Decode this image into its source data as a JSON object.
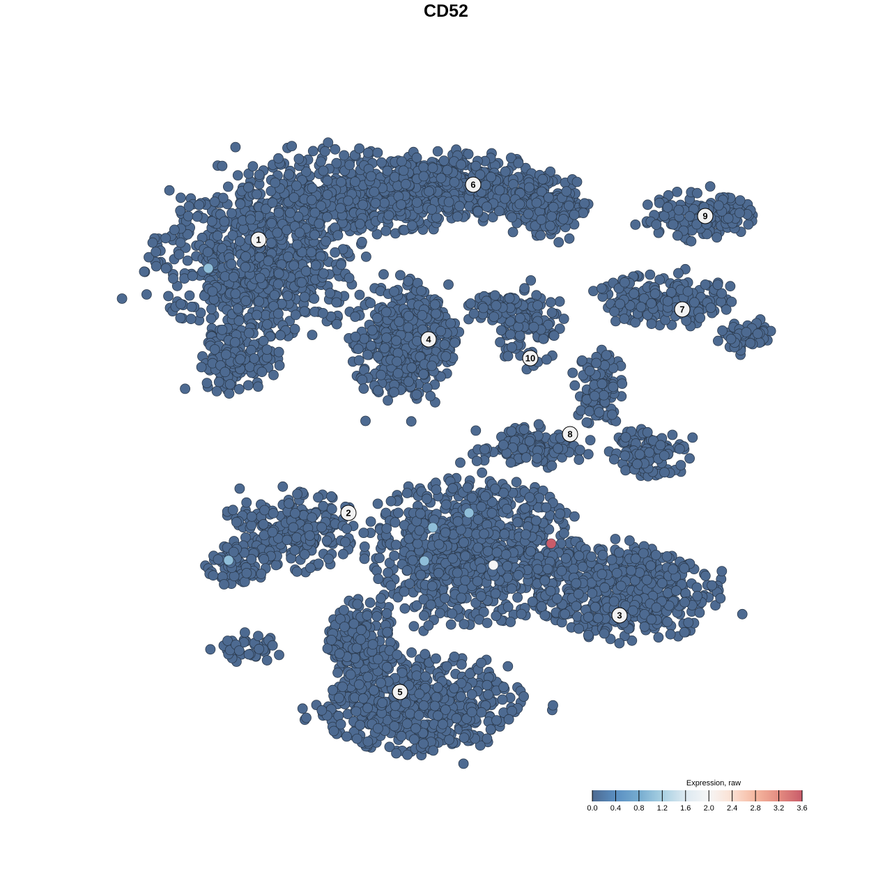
{
  "chart_data": {
    "type": "scatter",
    "title": "CD52",
    "xlabel": "",
    "ylabel": "",
    "axes_visible": false,
    "grid": false,
    "background_expression": 0.0,
    "clusters": [
      {
        "label": "1",
        "center": [
          -26.9,
          29.6
        ]
      },
      {
        "label": "2",
        "center": [
          -14.0,
          -9.6
        ]
      },
      {
        "label": "3",
        "center": [
          24.9,
          -24.3
        ]
      },
      {
        "label": "4",
        "center": [
          -2.5,
          15.3
        ]
      },
      {
        "label": "5",
        "center": [
          -6.6,
          -35.3
        ]
      },
      {
        "label": "6",
        "center": [
          3.9,
          37.5
        ]
      },
      {
        "label": "7",
        "center": [
          33.9,
          19.6
        ]
      },
      {
        "label": "8",
        "center": [
          17.8,
          1.7
        ]
      },
      {
        "label": "9",
        "center": [
          37.2,
          33.0
        ]
      },
      {
        "label": "10",
        "center": [
          12.1,
          12.6
        ]
      }
    ],
    "highlighted_cells": [
      {
        "x": -34.1,
        "y": 25.5,
        "expression": 1.0
      },
      {
        "x": -31.2,
        "y": -16.4,
        "expression": 1.0
      },
      {
        "x": -1.9,
        "y": -11.7,
        "expression": 1.0
      },
      {
        "x": 3.3,
        "y": -9.6,
        "expression": 1.0
      },
      {
        "x": -3.1,
        "y": -16.5,
        "expression": 1.0
      },
      {
        "x": 6.8,
        "y": -17.1,
        "expression": 2.0
      },
      {
        "x": 15.1,
        "y": -14.0,
        "expression": 3.6
      }
    ],
    "legend": {
      "title": "Expression, raw",
      "placement": "bottom-right",
      "ticks": [
        "0.0",
        "0.4",
        "0.8",
        "1.2",
        "1.6",
        "2.0",
        "2.4",
        "2.8",
        "3.2",
        "3.6"
      ],
      "range": [
        0,
        3.6
      ],
      "colors": [
        "#4d6a91",
        "#5a8fc2",
        "#76acd0",
        "#a8d0e2",
        "#dde9f1",
        "#f6f6f6",
        "#fbe0d2",
        "#f5b7a0",
        "#e48c80",
        "#c95c6a"
      ]
    }
  }
}
